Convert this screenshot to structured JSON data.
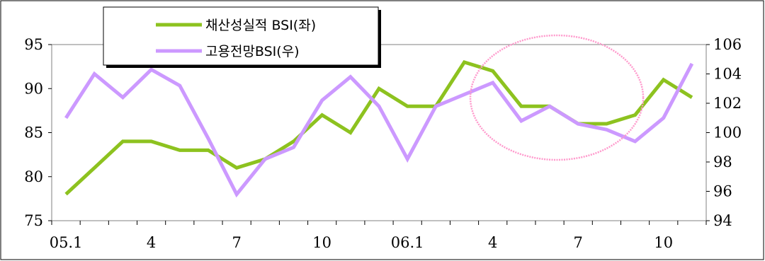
{
  "chart_data": {
    "type": "line",
    "categories": [
      "05.1",
      "",
      "",
      "4",
      "",
      "",
      "7",
      "",
      "",
      "10",
      "",
      "",
      "06.1",
      "",
      "",
      "4",
      "",
      "",
      "7",
      "",
      "",
      "10",
      ""
    ],
    "x_tick_labels": [
      "05.1",
      "4",
      "7",
      "10",
      "06.1",
      "4",
      "7",
      "10"
    ],
    "y_left": {
      "ylim": [
        75,
        95
      ],
      "ticks": [
        "75",
        "80",
        "85",
        "90",
        "95"
      ]
    },
    "y_right": {
      "ylim": [
        94,
        106
      ],
      "ticks": [
        "94",
        "96",
        "98",
        "100",
        "102",
        "104",
        "106"
      ]
    },
    "series": [
      {
        "name": "채산성실적 BSI(좌)",
        "axis": "left",
        "color": "#8dc21f",
        "values": [
          78,
          81,
          84,
          84,
          83,
          83,
          81,
          82,
          84,
          87,
          85,
          90,
          88,
          88,
          93,
          92,
          88,
          88,
          86,
          86,
          87,
          91,
          89
        ]
      },
      {
        "name": "고용전망BSI(우)",
        "axis": "right",
        "color": "#cc99ff",
        "values": [
          101,
          104,
          102.4,
          104.3,
          103.2,
          99.6,
          95.8,
          98.2,
          99,
          102.2,
          103.8,
          101.8,
          98.2,
          101.8,
          102.6,
          103.4,
          100.8,
          101.8,
          100.6,
          100.2,
          99.4,
          101,
          104.7
        ]
      }
    ],
    "annotation": {
      "shape": "ellipse",
      "color": "#ff99cc"
    },
    "grid": false,
    "legend_position": "top-left"
  }
}
